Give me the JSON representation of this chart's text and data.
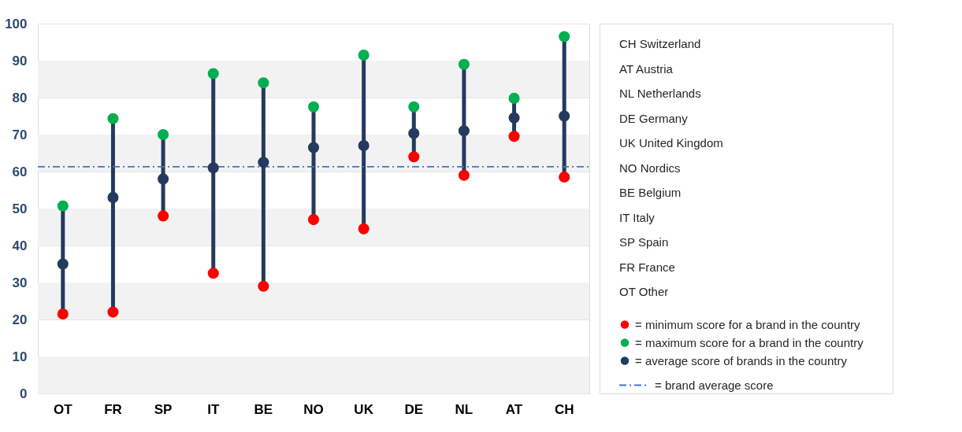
{
  "chart_data": {
    "type": "scatter",
    "categories": [
      "OT",
      "FR",
      "SP",
      "IT",
      "BE",
      "NO",
      "UK",
      "DE",
      "NL",
      "AT",
      "CH"
    ],
    "series": [
      {
        "name": "= minimum score for a brand in the country",
        "color": "#ff0000",
        "values": [
          21.5,
          22,
          48,
          32.5,
          29,
          47,
          44.5,
          64,
          59,
          69.5,
          58.5
        ]
      },
      {
        "name": "= maximum score for a brand in the country",
        "color": "#00b050",
        "values": [
          50.7,
          74.3,
          70,
          86.5,
          84,
          77.5,
          91.5,
          77.5,
          89,
          79.8,
          96.5
        ]
      },
      {
        "name": "= average score of brands in the country",
        "color": "#243a5e",
        "values": [
          35,
          53,
          58,
          61,
          62.5,
          66.5,
          67,
          70.3,
          71,
          74.5,
          75
        ]
      }
    ],
    "ylim": [
      0,
      100
    ],
    "yticks": [
      0,
      10,
      20,
      30,
      40,
      50,
      60,
      70,
      80,
      90,
      100
    ],
    "ref_lines": [
      {
        "axis": "y",
        "value": 61.3,
        "label": "= brand average score",
        "color": "#4472c4",
        "line_style": "dashdot"
      }
    ],
    "annotations": [
      "CH Switzerland",
      "AT Austria",
      "NL Netherlands",
      "DE Germany",
      "UK United Kingdom",
      "NO Nordics",
      "BE Belgium",
      "IT Italy",
      "SP Spain",
      "FR France",
      "OT Other"
    ],
    "grid": "y",
    "legend": "right",
    "marker": "circle"
  }
}
